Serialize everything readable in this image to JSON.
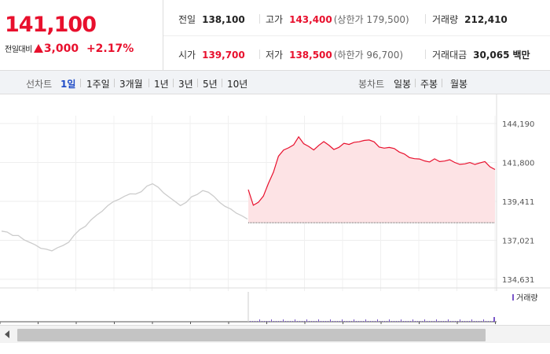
{
  "quote": {
    "price": "141,100",
    "change_label": "전일대비",
    "change_value": "3,000",
    "change_pct": "+2.17%"
  },
  "stats": {
    "prev_close": {
      "label": "전일",
      "value": "138,100"
    },
    "high": {
      "label": "고가",
      "value": "143,400",
      "sub": "(상한가 179,500)"
    },
    "volume": {
      "label": "거래량",
      "value": "212,410"
    },
    "open": {
      "label": "시가",
      "value": "139,700"
    },
    "low": {
      "label": "저가",
      "value": "138,500",
      "sub": "(하한가 96,700)"
    },
    "amount": {
      "label": "거래대금",
      "value": "30,065",
      "unit": "백만"
    }
  },
  "period_tabs": {
    "title": "선차트",
    "items": [
      "1일",
      "1주일",
      "3개월",
      "1년",
      "3년",
      "5년",
      "10년"
    ],
    "active": "1일"
  },
  "candle_tabs": {
    "title": "봉차트",
    "items": [
      "일봉",
      "주봉",
      "월봉"
    ]
  },
  "volume_label": "거래량",
  "colors": {
    "up": "#e8102d",
    "down": "#1e4bc7",
    "prev_day": "#cccccc",
    "fill": "#fde3e5"
  },
  "chart_data": {
    "type": "line",
    "title": "",
    "xlabel": "",
    "ylabel": "",
    "y_ticks": [
      "144,190",
      "141,800",
      "139,411",
      "137,021",
      "134,631"
    ],
    "ylim": [
      134631,
      144190
    ],
    "grid": true,
    "baseline": 138100,
    "series": [
      {
        "values": [
          137650,
          137550,
          137300,
          137250,
          137100,
          136900,
          136700,
          136600,
          136500,
          136350,
          136500,
          136750,
          136900,
          137300,
          137750,
          137900,
          138250,
          138500,
          138850,
          139150,
          139350,
          139600,
          139750,
          139850,
          139800,
          140050,
          140350,
          140450,
          140350,
          139950,
          139650,
          139350,
          139200,
          139350,
          139650,
          139900,
          140100,
          139950,
          139650,
          139400,
          139100,
          138900,
          138750,
          138550,
          138300
        ]
      },
      {
        "values": [
          140200,
          139100,
          139300,
          139700,
          140500,
          141200,
          142200,
          142600,
          142750,
          142950,
          143300,
          142900,
          142750,
          142550,
          142850,
          143100,
          142900,
          142650,
          142800,
          142900,
          142850,
          143000,
          143050,
          143150,
          143200,
          143100,
          142800,
          142750,
          142650,
          142600,
          142400,
          142300,
          142100,
          142050,
          142050,
          141950,
          141900,
          141950,
          141800,
          141850,
          141950,
          141800,
          141700,
          141750,
          141850,
          141750,
          141700,
          141800,
          141500,
          141350
        ]
      }
    ]
  }
}
